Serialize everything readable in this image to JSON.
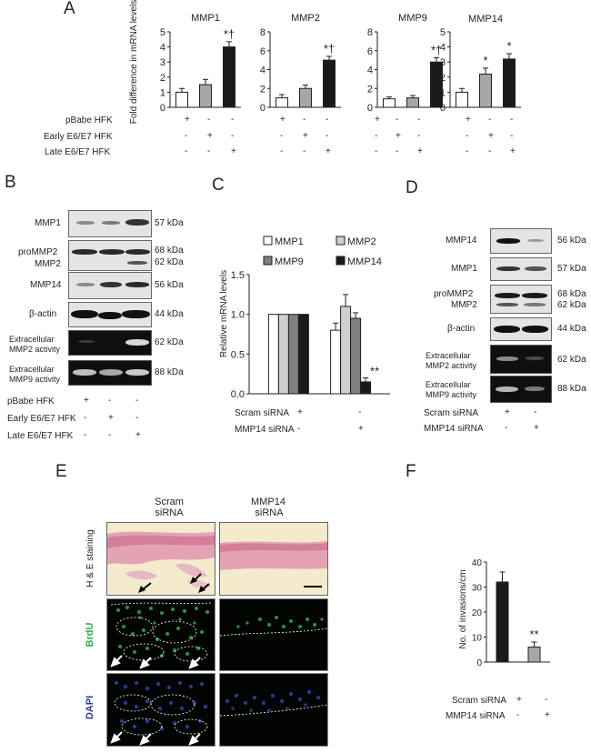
{
  "panels": {
    "A": "A",
    "B": "B",
    "C": "C",
    "D": "D",
    "E": "E",
    "F": "F"
  },
  "panel_a": {
    "ylabel": "Fold difference in mRNA levels",
    "conditions": [
      "pBabe HFK",
      "Early E6/E7 HFK",
      "Late E6/E7 HFK"
    ],
    "signs": [
      [
        "+",
        "-",
        "-"
      ],
      [
        "-",
        "+",
        "-"
      ],
      [
        "-",
        "-",
        "+"
      ]
    ]
  },
  "panel_b": {
    "row_labels": [
      "MMP1",
      "proMMP2",
      "MMP2",
      "MMP14",
      "β-actin",
      "Extracellular",
      "MMP2 activity",
      "Extracellular",
      "MMP9 activity"
    ],
    "kda": [
      "57 kDa",
      "68 kDa",
      "62 kDa",
      "56 kDa",
      "44 kDa",
      "62 kDa",
      "88 kDa"
    ],
    "conditions": [
      "pBabe HFK",
      "Early E6/E7 HFK",
      "Late E6/E7 HFK"
    ],
    "signs": [
      [
        "+",
        "-",
        "-"
      ],
      [
        "-",
        "+",
        "-"
      ],
      [
        "-",
        "-",
        "+"
      ]
    ]
  },
  "panel_c": {
    "ylabel": "Relative mRNA levels",
    "conditions": [
      "Scram siRNA",
      "MMP14 siRNA"
    ],
    "signs": [
      [
        "+",
        "-"
      ],
      [
        "-",
        "+"
      ]
    ]
  },
  "panel_d": {
    "row_labels": [
      "MMP14",
      "MMP1",
      "proMMP2",
      "MMP2",
      "β-actin",
      "Extracellular",
      "MMP2 activity",
      "Extracellular",
      "MMP9 activity"
    ],
    "kda": [
      "56 kDa",
      "57 kDa",
      "68 kDa",
      "62 kDa",
      "44 kDa",
      "62 kDa",
      "88 kDa"
    ],
    "conditions": [
      "Scram siRNA",
      "MMP14 siRNA"
    ],
    "signs": [
      [
        "+",
        "-"
      ],
      [
        "-",
        "+"
      ]
    ]
  },
  "panel_e": {
    "col_labels": [
      "Scram",
      "siRNA",
      "MMP14",
      "siRNA"
    ],
    "row_labels": [
      "H & E staining",
      "BrdU",
      "DAPI"
    ],
    "colors": {
      "brdu": "#2fae4e",
      "dapi": "#2f3d9e"
    }
  },
  "panel_f": {
    "ylabel": "No. of invasions/cm",
    "conditions": [
      "Scram siRNA",
      "MMP14 siRNA"
    ],
    "signs": [
      [
        "+",
        "-"
      ],
      [
        "-",
        "+"
      ]
    ]
  },
  "chart_data": [
    {
      "type": "bar",
      "title": "MMP1",
      "categories": [
        "pBabe HFK",
        "Early E6/E7 HFK",
        "Late E6/E7 HFK"
      ],
      "values": [
        1.0,
        1.5,
        4.0
      ],
      "errors": [
        0.25,
        0.35,
        0.35
      ],
      "ylim": [
        0,
        5
      ],
      "yticks": [
        "0",
        "1",
        "2",
        "3",
        "4",
        "5"
      ],
      "annotations": [
        "",
        "",
        "*†"
      ],
      "ylabel": "Fold difference in mRNA levels",
      "bar_colors": [
        "#ffffff",
        "#a6a6a6",
        "#1a1a1a"
      ]
    },
    {
      "type": "bar",
      "title": "MMP2",
      "categories": [
        "pBabe HFK",
        "Early E6/E7 HFK",
        "Late E6/E7 HFK"
      ],
      "values": [
        1.0,
        2.0,
        5.0
      ],
      "errors": [
        0.35,
        0.35,
        0.4
      ],
      "ylim": [
        0,
        8
      ],
      "yticks": [
        "0",
        "2",
        "4",
        "6",
        "8"
      ],
      "annotations": [
        "",
        "",
        "*†"
      ],
      "bar_colors": [
        "#ffffff",
        "#a6a6a6",
        "#1a1a1a"
      ]
    },
    {
      "type": "bar",
      "title": "MMP9",
      "categories": [
        "pBabe HFK",
        "Early E6/E7 HFK",
        "Late E6/E7 HFK"
      ],
      "values": [
        0.9,
        1.0,
        4.8
      ],
      "errors": [
        0.2,
        0.25,
        0.45
      ],
      "ylim": [
        0,
        8
      ],
      "yticks": [
        "0",
        "2",
        "4",
        "6",
        "8"
      ],
      "annotations": [
        "",
        "",
        "*†"
      ],
      "bar_colors": [
        "#ffffff",
        "#a6a6a6",
        "#1a1a1a"
      ]
    },
    {
      "type": "bar",
      "title": "MMP14",
      "categories": [
        "pBabe HFK",
        "Early E6/E7 HFK",
        "Late E6/E7 HFK"
      ],
      "values": [
        1.0,
        2.2,
        3.2
      ],
      "errors": [
        0.25,
        0.4,
        0.35
      ],
      "ylim": [
        0,
        5
      ],
      "yticks": [
        "0",
        "1",
        "2",
        "3",
        "4",
        "5"
      ],
      "annotations": [
        "",
        "*",
        "*"
      ],
      "bar_colors": [
        "#ffffff",
        "#a6a6a6",
        "#1a1a1a"
      ]
    },
    {
      "type": "bar",
      "categories": [
        "Scram siRNA",
        "MMP14 siRNA"
      ],
      "series": [
        {
          "name": "MMP1",
          "color": "#ffffff",
          "values": [
            1.0,
            0.8
          ],
          "errors": [
            0,
            0.09
          ]
        },
        {
          "name": "MMP2",
          "color": "#cfcfcf",
          "values": [
            1.0,
            1.1
          ],
          "errors": [
            0,
            0.15
          ]
        },
        {
          "name": "MMP9",
          "color": "#7f7f7f",
          "values": [
            1.0,
            0.95
          ],
          "errors": [
            0,
            0.07
          ]
        },
        {
          "name": "MMP14",
          "color": "#1a1a1a",
          "values": [
            1.0,
            0.15
          ],
          "errors": [
            0,
            0.05
          ]
        }
      ],
      "ylim": [
        0,
        1.5
      ],
      "yticks": [
        "0.0",
        "0.5",
        "1.0",
        "1.5"
      ],
      "annotations": [
        "",
        "**"
      ],
      "ylabel": "Relative mRNA levels",
      "legend": "top"
    },
    {
      "type": "bar",
      "categories": [
        "Scram siRNA",
        "MMP14 siRNA"
      ],
      "values": [
        32,
        6
      ],
      "errors": [
        4,
        2
      ],
      "ylim": [
        0,
        40
      ],
      "yticks": [
        "0",
        "10",
        "20",
        "30",
        "40"
      ],
      "annotations": [
        "",
        "**"
      ],
      "ylabel": "No. of invasions/cm",
      "bar_colors": [
        "#1a1a1a",
        "#a6a6a6"
      ]
    }
  ]
}
